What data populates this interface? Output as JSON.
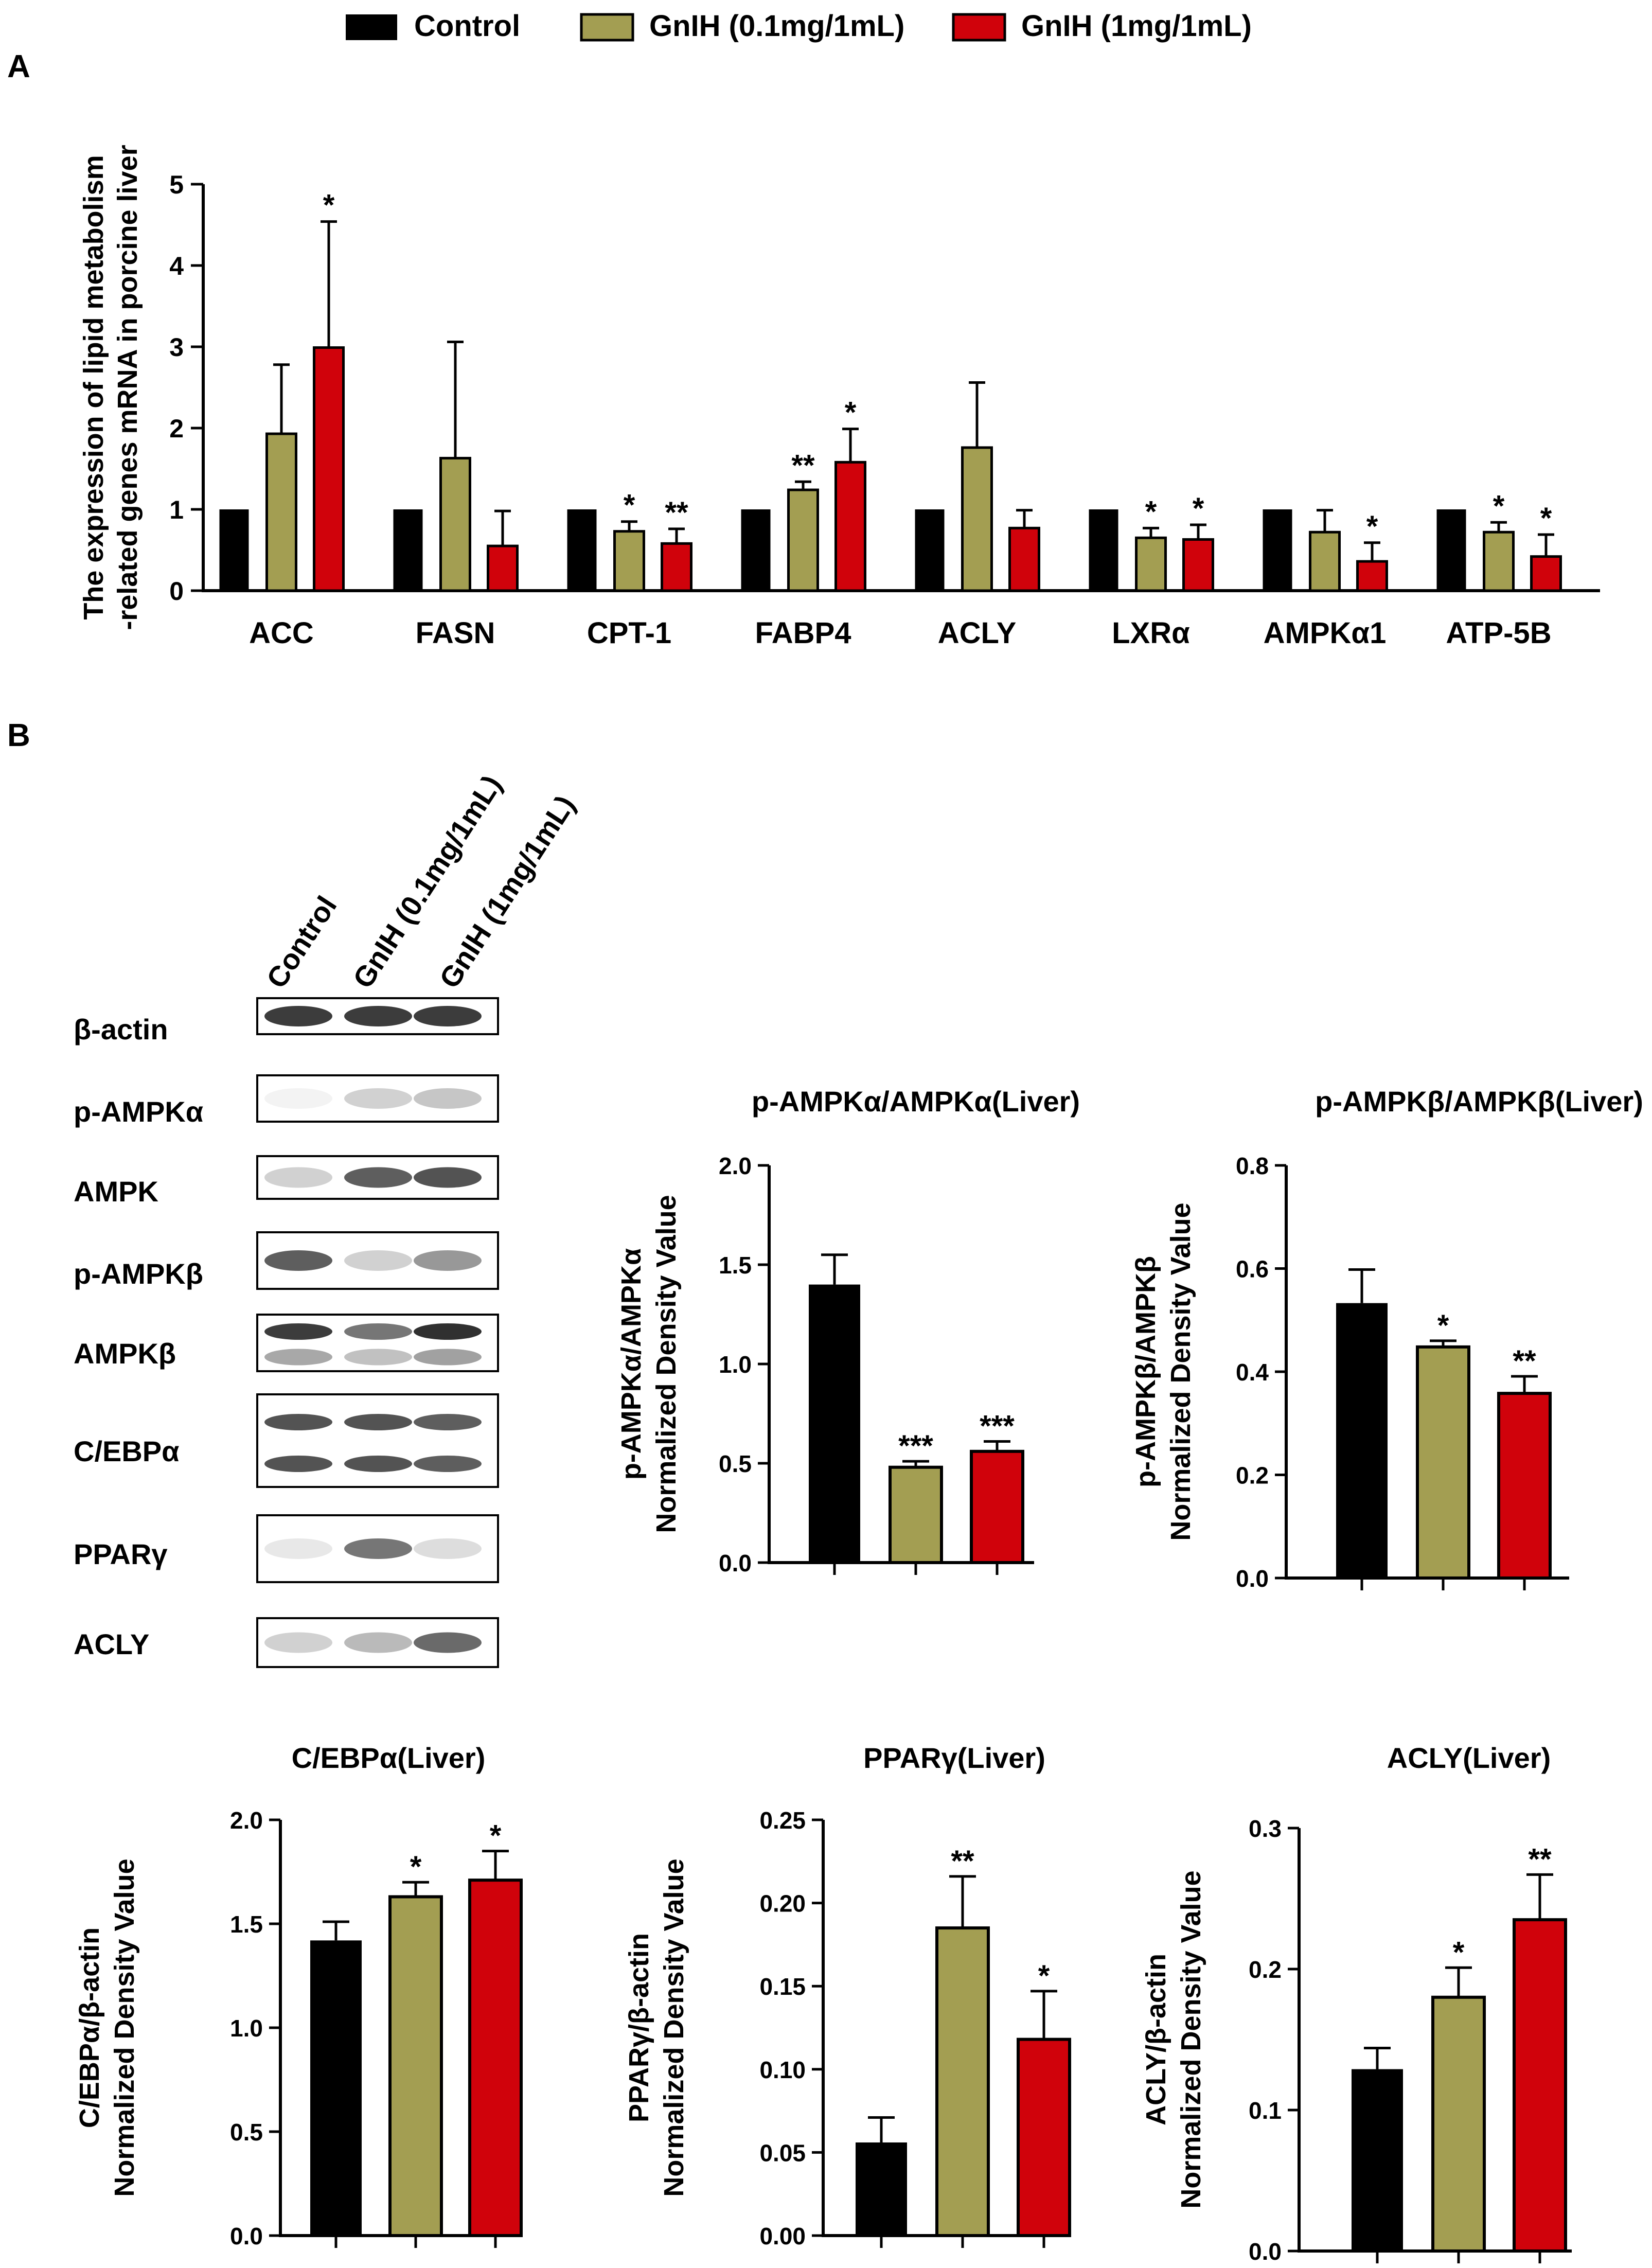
{
  "colors": {
    "control": "#000000",
    "low": "#a39e52",
    "high": "#d0020b",
    "axis": "#000000"
  },
  "legend": {
    "position": "top-center",
    "items": [
      {
        "label": "Control",
        "color": "#000000"
      },
      {
        "label": "GnIH (0.1mg/1mL)",
        "color": "#a39e52"
      },
      {
        "label": "GnIH (1mg/1mL)",
        "color": "#d0020b"
      }
    ]
  },
  "panel_labels": {
    "a": "A",
    "b": "B"
  },
  "chart_data": [
    {
      "type": "bar",
      "title": "",
      "categories": [
        "ACC",
        "FASN",
        "CPT-1",
        "FABP4",
        "ACLY",
        "LXRα",
        "AMPKα1",
        "ATP-5B"
      ],
      "ylabel_lines": [
        "The expression of lipid metabolism",
        "-related genes mRNA in porcine liver"
      ],
      "ylim": [
        0,
        5
      ],
      "yticks": [
        "0",
        "1",
        "2",
        "3",
        "4",
        "5"
      ],
      "series": [
        {
          "name": "Control",
          "values": [
            1,
            1,
            1,
            1,
            1,
            1,
            1,
            1
          ],
          "errors": [
            0,
            0,
            0,
            0,
            0,
            0,
            0,
            0
          ],
          "sig": [
            "",
            "",
            "",
            "",
            "",
            "",
            "",
            ""
          ]
        },
        {
          "name": "GnIH (0.1mg/1mL)",
          "values": [
            1.93,
            1.63,
            0.73,
            1.24,
            1.76,
            0.65,
            0.72,
            0.72
          ],
          "errors": [
            0.85,
            1.43,
            0.12,
            0.1,
            0.8,
            0.12,
            0.27,
            0.12
          ],
          "sig": [
            "",
            "",
            "*",
            "**",
            "",
            "*",
            "",
            "*"
          ]
        },
        {
          "name": "GnIH (1mg/1mL)",
          "values": [
            2.99,
            0.55,
            0.58,
            1.58,
            0.77,
            0.63,
            0.36,
            0.42
          ],
          "errors": [
            1.55,
            0.43,
            0.18,
            0.41,
            0.22,
            0.18,
            0.23,
            0.27
          ],
          "sig": [
            "*",
            "",
            "**",
            "*",
            "",
            "*",
            "*",
            "*"
          ]
        }
      ]
    },
    {
      "type": "bar",
      "title": "p-AMPKα/AMPKα(Liver)",
      "ylabel_lines": [
        "p-AMPKα/AMPKα",
        "Normalized Density Value"
      ],
      "ylim": [
        0,
        2
      ],
      "yticks": [
        "0.0",
        "0.5",
        "1.0",
        "1.5",
        "2.0"
      ],
      "values": [
        1.4,
        0.48,
        0.56
      ],
      "errors": [
        0.15,
        0.03,
        0.05
      ],
      "sig": [
        "",
        "***",
        "***"
      ]
    },
    {
      "type": "bar",
      "title": "p-AMPKβ/AMPKβ(Liver)",
      "ylabel_lines": [
        "p-AMPKβ/AMPKβ",
        "Normalized Density Value"
      ],
      "ylim": [
        0,
        0.8
      ],
      "yticks": [
        "0.0",
        "0.2",
        "0.4",
        "0.6",
        "0.8"
      ],
      "values": [
        0.533,
        0.448,
        0.358
      ],
      "errors": [
        0.065,
        0.012,
        0.033
      ],
      "sig": [
        "",
        "*",
        "**"
      ]
    },
    {
      "type": "bar",
      "title": "C/EBPα(Liver)",
      "ylabel_lines": [
        "C/EBPα/β-actin",
        "Normalized Density Value"
      ],
      "ylim": [
        0,
        2
      ],
      "yticks": [
        "0.0",
        "0.5",
        "1.0",
        "1.5",
        "2.0"
      ],
      "values": [
        1.42,
        1.63,
        1.71
      ],
      "errors": [
        0.09,
        0.07,
        0.14
      ],
      "sig": [
        "",
        "*",
        "*"
      ]
    },
    {
      "type": "bar",
      "title": "PPARγ(Liver)",
      "ylabel_lines": [
        "PPARγ/β-actin",
        "Normalized Density Value"
      ],
      "ylim": [
        0,
        0.25
      ],
      "yticks": [
        "0.00",
        "0.05",
        "0.10",
        "0.15",
        "0.20",
        "0.25"
      ],
      "values": [
        0.056,
        0.185,
        0.118
      ],
      "errors": [
        0.015,
        0.031,
        0.029
      ],
      "sig": [
        "",
        "**",
        "*"
      ]
    },
    {
      "type": "bar",
      "title": "ACLY(Liver)",
      "ylabel_lines": [
        "ACLY/β-actin",
        "Normalized Density Value"
      ],
      "ylim": [
        0,
        0.3
      ],
      "yticks": [
        "0.0",
        "0.1",
        "0.2",
        "0.3"
      ],
      "values": [
        0.129,
        0.18,
        0.235
      ],
      "errors": [
        0.015,
        0.021,
        0.032
      ],
      "sig": [
        "",
        "*",
        "**"
      ]
    }
  ],
  "blot": {
    "lane_labels": [
      "Control",
      "GnIH (0.1mg/1mL)",
      "GnIH (1mg/1mL)"
    ],
    "rows": [
      {
        "label": "β-actin",
        "bands": [
          0.85,
          0.85,
          0.85
        ]
      },
      {
        "label": "p-AMPKα",
        "bands": [
          0.05,
          0.2,
          0.25
        ]
      },
      {
        "label": "AMPK",
        "bands": [
          0.2,
          0.7,
          0.75
        ]
      },
      {
        "label": "p-AMPKβ",
        "bands": [
          0.7,
          0.2,
          0.45
        ]
      },
      {
        "label": "AMPKβ",
        "bands": [
          0.85,
          0.6,
          0.9
        ]
      },
      {
        "label": "C/EBPα",
        "bands": [
          0.75,
          0.75,
          0.7
        ]
      },
      {
        "label": "PPARγ",
        "bands": [
          0.1,
          0.6,
          0.15
        ]
      },
      {
        "label": "ACLY",
        "bands": [
          0.2,
          0.3,
          0.65
        ]
      }
    ]
  }
}
